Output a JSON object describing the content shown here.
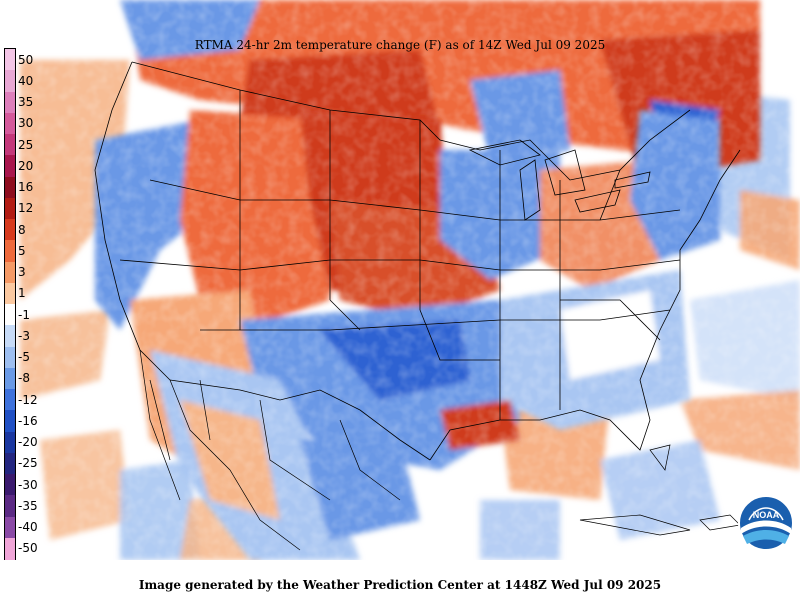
{
  "title": "RTMA 24-hr 2m temperature change (F) as of 14Z Wed Jul 09 2025",
  "footer": "Image generated by the Weather Prediction Center at 1448Z Wed Jul 09 2025",
  "logo_text": "NOAA",
  "legend": [
    {
      "label": "50",
      "color": "#f3c6e6"
    },
    {
      "label": "40",
      "color": "#e8a8d4"
    },
    {
      "label": "35",
      "color": "#dd7fbb"
    },
    {
      "label": "30",
      "color": "#d45a9b"
    },
    {
      "label": "25",
      "color": "#c3387a"
    },
    {
      "label": "20",
      "color": "#a8164d"
    },
    {
      "label": "16",
      "color": "#8e0d1f"
    },
    {
      "label": "12",
      "color": "#b21c14"
    },
    {
      "label": "8",
      "color": "#d63a1e"
    },
    {
      "label": "5",
      "color": "#ee6a3c"
    },
    {
      "label": "3",
      "color": "#f59a66"
    },
    {
      "label": "1",
      "color": "#fbc9a1"
    },
    {
      "label": "-1",
      "color": "#ffffff"
    },
    {
      "label": "-3",
      "color": "#c7dbf7"
    },
    {
      "label": "-5",
      "color": "#9ebff0"
    },
    {
      "label": "-8",
      "color": "#6a9ae6"
    },
    {
      "label": "-12",
      "color": "#3e72dc"
    },
    {
      "label": "-16",
      "color": "#2050c4"
    },
    {
      "label": "-20",
      "color": "#1a37a0"
    },
    {
      "label": "-25",
      "color": "#232680"
    },
    {
      "label": "-30",
      "color": "#3a1a6e"
    },
    {
      "label": "-35",
      "color": "#5b2a84"
    },
    {
      "label": "-40",
      "color": "#8a4aa6"
    },
    {
      "label": "-50",
      "color": "#f0a6d8"
    }
  ],
  "colors": {
    "warm": "#e8643c",
    "warm_dark": "#cf3a1e",
    "warm_light": "#f6a878",
    "cool": "#6a98e6",
    "cool_dark": "#2f62d2",
    "cool_light": "#a9c6f2",
    "neutral": "#ffffff"
  }
}
